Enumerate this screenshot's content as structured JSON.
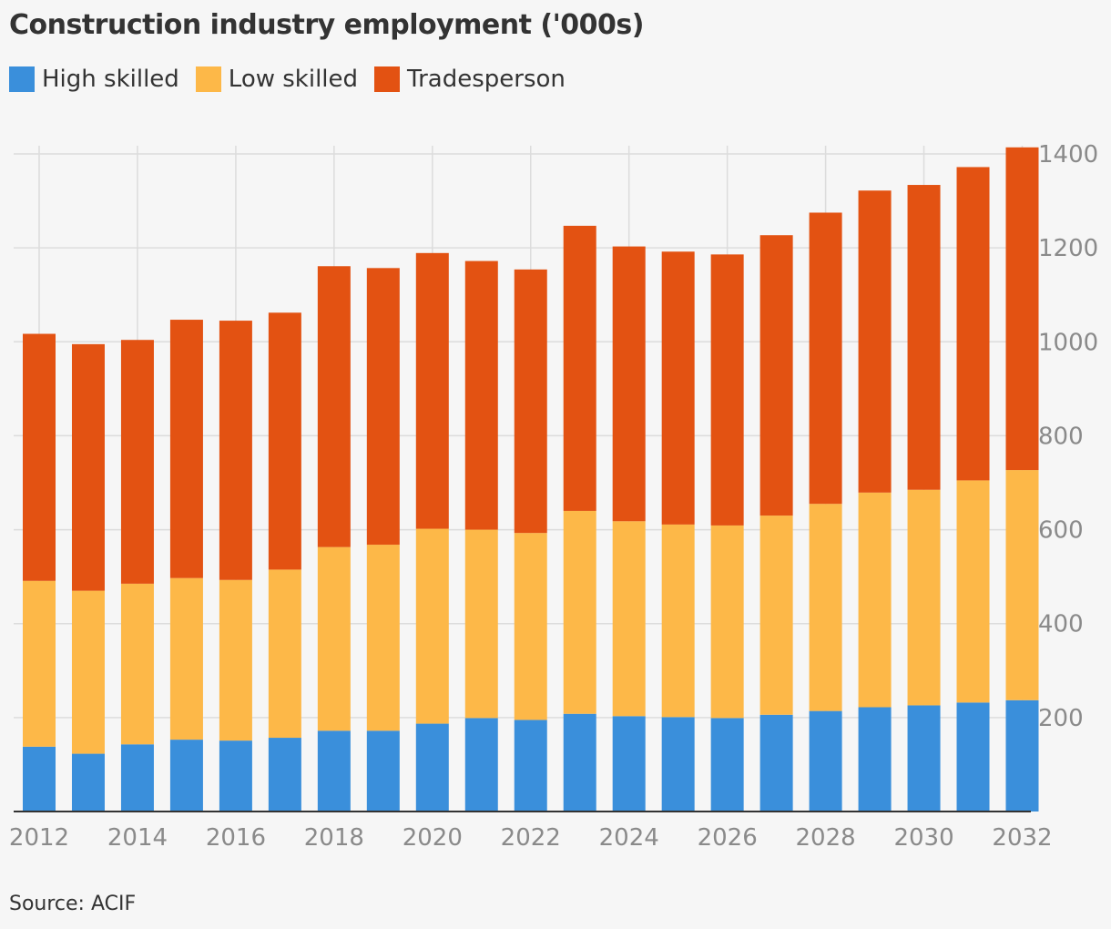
{
  "title": "Construction industry employment ('000s)",
  "source": "Source: ACIF",
  "legend": [
    {
      "label": "High skilled",
      "color": "#3a8fdb"
    },
    {
      "label": "Low skilled",
      "color": "#fdb848"
    },
    {
      "label": "Tradesperson",
      "color": "#e35212"
    }
  ],
  "chart_data": {
    "type": "bar",
    "stacked": true,
    "title": "Construction industry employment ('000s)",
    "categories": [
      "2012",
      "2013",
      "2014",
      "2015",
      "2016",
      "2017",
      "2018",
      "2019",
      "2020",
      "2021",
      "2022",
      "2023",
      "2024",
      "2025",
      "2026",
      "2027",
      "2028",
      "2029",
      "2030",
      "2031",
      "2032"
    ],
    "x_tick_labels": [
      "2012",
      "2014",
      "2016",
      "2018",
      "2020",
      "2022",
      "2024",
      "2026",
      "2028",
      "2030",
      "2032"
    ],
    "y_ticks": [
      200,
      400,
      600,
      800,
      1000,
      1200,
      1400
    ],
    "ylim": [
      0,
      1400
    ],
    "y_axis_side": "right",
    "grid": true,
    "legend_position": "top-left",
    "series": [
      {
        "name": "High skilled",
        "color": "#3a8fdb",
        "values": [
          138,
          123,
          143,
          153,
          151,
          157,
          172,
          172,
          187,
          199,
          195,
          208,
          203,
          201,
          199,
          206,
          214,
          222,
          226,
          232,
          237
        ]
      },
      {
        "name": "Low skilled",
        "color": "#fdb848",
        "values": [
          353,
          347,
          342,
          344,
          342,
          358,
          391,
          396,
          415,
          401,
          398,
          432,
          415,
          410,
          410,
          424,
          441,
          457,
          459,
          473,
          490
        ]
      },
      {
        "name": "Tradesperson",
        "color": "#e35212",
        "values": [
          526,
          525,
          519,
          550,
          552,
          547,
          598,
          589,
          587,
          572,
          561,
          607,
          585,
          581,
          577,
          597,
          620,
          643,
          649,
          667,
          687
        ]
      }
    ]
  }
}
